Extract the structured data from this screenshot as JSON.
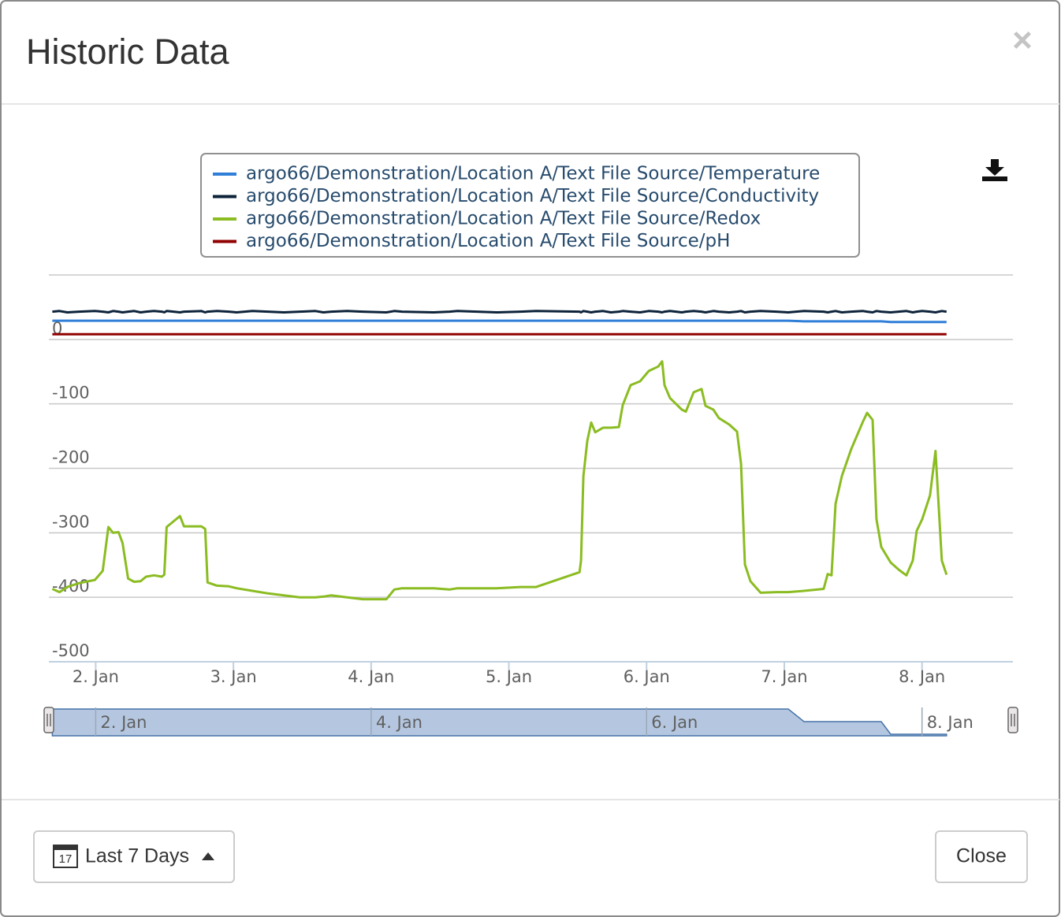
{
  "header": {
    "title": "Historic Data",
    "close_icon": "×"
  },
  "footer": {
    "calendar_day": "17",
    "range_button": "Last 7 Days",
    "close_button": "Close"
  },
  "chart_data": {
    "type": "line",
    "legend": "top",
    "grid": true,
    "x": [
      1.685,
      1.737,
      1.794,
      1.88,
      1.994,
      2.051,
      2.092,
      2.126,
      2.166,
      2.195,
      2.235,
      2.28,
      2.326,
      2.366,
      2.423,
      2.481,
      2.498,
      2.515,
      2.566,
      2.612,
      2.641,
      2.767,
      2.795,
      2.812,
      2.881,
      2.967,
      3.024,
      3.138,
      3.253,
      3.367,
      3.482,
      3.596,
      3.653,
      3.711,
      3.825,
      3.939,
      4.111,
      4.168,
      4.225,
      4.454,
      4.569,
      4.626,
      4.912,
      5.084,
      5.198,
      5.513,
      5.524,
      5.541,
      5.57,
      5.598,
      5.627,
      5.684,
      5.741,
      5.799,
      5.827,
      5.884,
      5.953,
      6.016,
      6.085,
      6.113,
      6.13,
      6.17,
      6.256,
      6.285,
      6.342,
      6.399,
      6.428,
      6.485,
      6.525,
      6.6,
      6.657,
      6.686,
      6.714,
      6.754,
      6.828,
      6.943,
      7.029,
      7.143,
      7.286,
      7.315,
      7.343,
      7.372,
      7.418,
      7.486,
      7.572,
      7.601,
      7.641,
      7.669,
      7.704,
      7.772,
      7.83,
      7.887,
      7.933,
      7.961,
      8.001,
      8.058,
      8.098,
      8.144,
      8.178
    ],
    "xlim": [
      1.66,
      8.66
    ],
    "xticks": [
      {
        "value": 2,
        "label": "2. Jan"
      },
      {
        "value": 3,
        "label": "3. Jan"
      },
      {
        "value": 4,
        "label": "4. Jan"
      },
      {
        "value": 5,
        "label": "5. Jan"
      },
      {
        "value": 6,
        "label": "6. Jan"
      },
      {
        "value": 7,
        "label": "7. Jan"
      },
      {
        "value": 8,
        "label": "8. Jan"
      }
    ],
    "ylim": [
      -500,
      100
    ],
    "yticks": [
      -500,
      -400,
      -300,
      -200,
      -100,
      0
    ],
    "navigator": {
      "xticks": [
        {
          "value": 2,
          "label": "2. Jan"
        },
        {
          "value": 4,
          "label": "4. Jan"
        },
        {
          "value": 6,
          "label": "6. Jan"
        },
        {
          "value": 8,
          "label": "8. Jan"
        }
      ]
    },
    "series": [
      {
        "name": "argo66/Demonstration/Location A/Text File Source/Temperature",
        "color": "#2f7ed8",
        "values": [
          29,
          29,
          29,
          29,
          29,
          29,
          29,
          29,
          29,
          29,
          29,
          29,
          29,
          29,
          29,
          29,
          29,
          29,
          29,
          29,
          29,
          29,
          29,
          29,
          29,
          29,
          29,
          29,
          29,
          29,
          29,
          29,
          29,
          29,
          29,
          29,
          29,
          29,
          29,
          29,
          29,
          29,
          29,
          29,
          29,
          29,
          29,
          29,
          29,
          29,
          29,
          29,
          29,
          29,
          29,
          29,
          29,
          29,
          29,
          29,
          29,
          29,
          29,
          29,
          29,
          29,
          29,
          29,
          29,
          29,
          29,
          29,
          29,
          29,
          29,
          29,
          29,
          28,
          28,
          28,
          28,
          28,
          28,
          28,
          28,
          28,
          28,
          28,
          28,
          27,
          27,
          27,
          27,
          27,
          27,
          27,
          27,
          27,
          27
        ]
      },
      {
        "name": "argo66/Demonstration/Location A/Text File Source/Conductivity",
        "color": "#0d233a",
        "values": [
          43,
          44,
          42,
          43,
          44,
          43,
          42,
          44,
          43,
          42,
          43,
          44,
          42,
          43,
          44,
          43,
          42,
          44,
          43,
          42,
          43,
          44,
          42,
          43,
          44,
          43,
          42,
          44,
          43,
          42,
          43,
          44,
          42,
          43,
          44,
          43,
          42,
          44,
          43,
          42,
          43,
          44,
          42,
          43,
          44,
          43,
          42,
          44,
          43,
          42,
          43,
          44,
          42,
          43,
          44,
          43,
          42,
          44,
          43,
          42,
          43,
          44,
          42,
          43,
          44,
          43,
          42,
          44,
          43,
          42,
          43,
          44,
          42,
          43,
          44,
          43,
          42,
          44,
          43,
          42,
          43,
          44,
          42,
          43,
          44,
          43,
          42,
          44,
          43,
          42,
          43,
          44,
          42,
          43,
          44,
          43,
          42,
          44,
          43
        ]
      },
      {
        "name": "argo66/Demonstration/Location A/Text File Source/Redox",
        "color": "#8bbc21",
        "values": [
          -387,
          -392,
          -384,
          -378,
          -373,
          -359,
          -291,
          -300,
          -299,
          -316,
          -371,
          -376,
          -375,
          -368,
          -366,
          -368,
          -365,
          -291,
          -282,
          -274,
          -290,
          -290,
          -294,
          -377,
          -382,
          -383,
          -386,
          -390,
          -394,
          -397,
          -400,
          -400,
          -399,
          -397,
          -400,
          -403,
          -403,
          -388,
          -386,
          -386,
          -388,
          -386,
          -386,
          -384,
          -384,
          -361,
          -343,
          -212,
          -157,
          -129,
          -144,
          -137,
          -137,
          -136,
          -102,
          -71,
          -65,
          -49,
          -42,
          -34,
          -71,
          -91,
          -109,
          -112,
          -82,
          -77,
          -103,
          -109,
          -122,
          -132,
          -143,
          -193,
          -349,
          -375,
          -393,
          -392,
          -392,
          -390,
          -387,
          -364,
          -366,
          -255,
          -212,
          -170,
          -127,
          -114,
          -125,
          -279,
          -322,
          -346,
          -357,
          -366,
          -343,
          -297,
          -279,
          -242,
          -173,
          -343,
          -365
        ]
      },
      {
        "name": "argo66/Demonstration/Location A/Text File Source/pH",
        "color": "#910000",
        "values": [
          8,
          8,
          8,
          8,
          8,
          8,
          8,
          8,
          8,
          8,
          8,
          8,
          8,
          8,
          8,
          8,
          8,
          8,
          8,
          8,
          8,
          8,
          8,
          8,
          8,
          8,
          8,
          8,
          8,
          8,
          8,
          8,
          8,
          8,
          8,
          8,
          8,
          8,
          8,
          8,
          8,
          8,
          8,
          8,
          8,
          8,
          8,
          8,
          8,
          8,
          8,
          8,
          8,
          8,
          8,
          8,
          8,
          8,
          8,
          8,
          8,
          8,
          8,
          8,
          8,
          8,
          8,
          8,
          8,
          8,
          8,
          8,
          8,
          8,
          8,
          8,
          8,
          8,
          8,
          8,
          8,
          8,
          8,
          8,
          8,
          8,
          8,
          8,
          8,
          8,
          8,
          8,
          8,
          8,
          8,
          8,
          8,
          8,
          8
        ]
      }
    ]
  }
}
